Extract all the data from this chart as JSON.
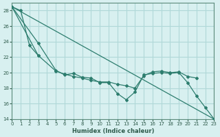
{
  "xlabel": "Humidex (Indice chaleur)",
  "bg_color": "#d8f0f0",
  "grid_color": "#b0d8d8",
  "line_color": "#2d7d6e",
  "xlim": [
    0,
    23
  ],
  "ylim": [
    14,
    29
  ],
  "xticks": [
    0,
    1,
    2,
    3,
    4,
    5,
    6,
    7,
    8,
    9,
    10,
    11,
    12,
    13,
    14,
    15,
    16,
    17,
    18,
    19,
    20,
    21,
    22,
    23
  ],
  "yticks": [
    14,
    16,
    18,
    20,
    22,
    24,
    26,
    28
  ],
  "ref_line_x": [
    0,
    23
  ],
  "ref_line_y": [
    28.5,
    14.0
  ],
  "line1_x": [
    0,
    1,
    2,
    3
  ],
  "line1_y": [
    28.5,
    28.0,
    23.5,
    22.2
  ],
  "line2_x": [
    0,
    3,
    5,
    6,
    7,
    8,
    9,
    10,
    11,
    12,
    13,
    14,
    15,
    16,
    17,
    18,
    19,
    20,
    21,
    22,
    23
  ],
  "line2_y": [
    28.5,
    23.8,
    20.3,
    19.7,
    19.9,
    19.4,
    19.3,
    18.7,
    18.7,
    17.3,
    16.5,
    17.5,
    19.7,
    19.9,
    20.0,
    19.9,
    20.0,
    18.7,
    17.0,
    15.5,
    14.0
  ],
  "line3_x": [
    0,
    3,
    5,
    6,
    7,
    8,
    9,
    10,
    11,
    12,
    13,
    14,
    15,
    16,
    17,
    18,
    19,
    20,
    21
  ],
  "line3_y": [
    28.5,
    22.2,
    20.2,
    19.8,
    19.5,
    19.3,
    19.0,
    18.8,
    18.8,
    18.5,
    18.3,
    18.0,
    19.6,
    20.1,
    20.2,
    20.0,
    20.1,
    19.5,
    19.3
  ]
}
